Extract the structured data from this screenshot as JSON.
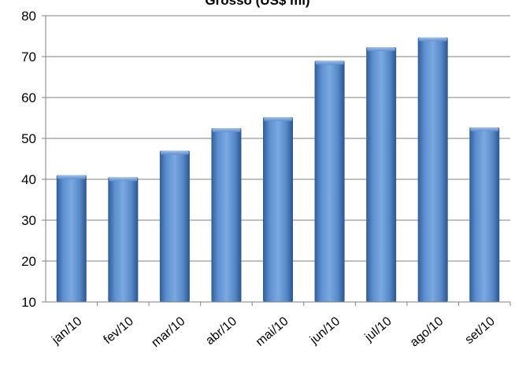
{
  "chart_data": {
    "type": "bar",
    "title": "Grosso (US$ mi)",
    "xlabel": "",
    "ylabel": "",
    "categories": [
      "jan/10",
      "fev/10",
      "mar/10",
      "abr/10",
      "mai/10",
      "jun/10",
      "jul/10",
      "ago/10",
      "set/10"
    ],
    "series": [
      {
        "values": [
          41,
          40.5,
          47,
          52.5,
          55.2,
          69,
          72.3,
          74.7,
          52.7
        ]
      }
    ],
    "ylim": [
      10,
      80
    ],
    "yticks": [
      10,
      20,
      30,
      40,
      50,
      60,
      70,
      80
    ],
    "grid": true,
    "legend": "none",
    "colors": {
      "bar": "#4f81bd",
      "bar_light": "#7aa7de",
      "bar_dark": "#2e5a91",
      "grid": "#808080",
      "axis": "#808080"
    }
  }
}
